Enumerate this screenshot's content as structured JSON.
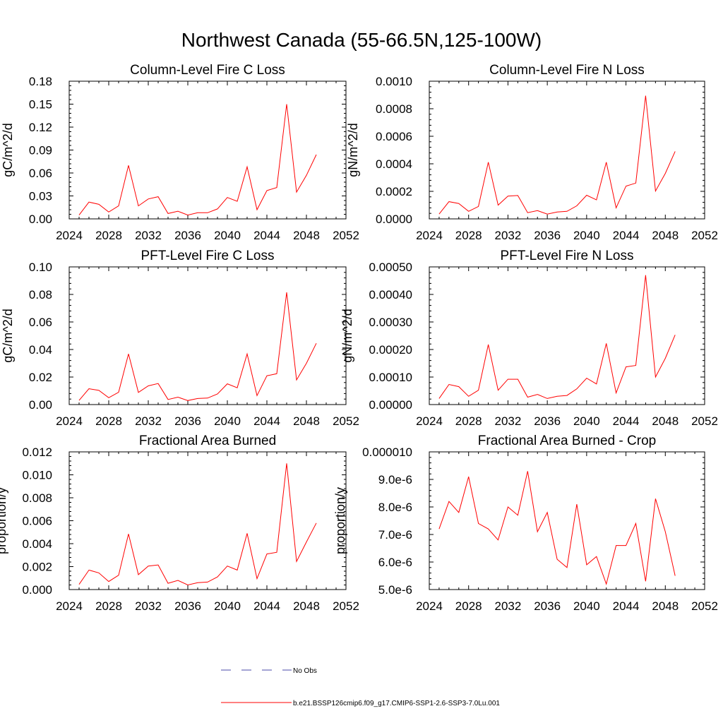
{
  "title": "Northwest Canada (55-66.5N,125-100W)",
  "legend": {
    "no_obs": "No Obs",
    "model": "b.e21.BSSP126cmip6.f09_g17.CMIP6-SSP1-2.6-SSP3-7.0Lu.001"
  },
  "colors": {
    "series": "#ff0000",
    "no_obs": "#4a4aa8",
    "axis": "#000000"
  },
  "chart_data": [
    {
      "type": "line",
      "title": "Column-Level Fire C Loss",
      "ylabel": "gC/m^2/d",
      "xlabel": "",
      "xlim": [
        2024,
        2052
      ],
      "ylim": [
        0,
        0.18
      ],
      "x_ticks": [
        "2024",
        "2028",
        "2032",
        "2036",
        "2040",
        "2044",
        "2048",
        "2052"
      ],
      "y_ticks": [
        "0.00",
        "0.03",
        "0.06",
        "0.09",
        "0.12",
        "0.15",
        "0.18"
      ],
      "x": [
        2025,
        2026,
        2027,
        2028,
        2029,
        2030,
        2031,
        2032,
        2033,
        2034,
        2035,
        2036,
        2037,
        2038,
        2039,
        2040,
        2041,
        2042,
        2043,
        2044,
        2045,
        2046,
        2047,
        2048,
        2049
      ],
      "series": [
        {
          "values": [
            0.005,
            0.022,
            0.019,
            0.009,
            0.017,
            0.07,
            0.017,
            0.026,
            0.029,
            0.007,
            0.01,
            0.005,
            0.008,
            0.008,
            0.013,
            0.028,
            0.023,
            0.068,
            0.012,
            0.037,
            0.041,
            0.15,
            0.035,
            0.057,
            0.084
          ]
        }
      ]
    },
    {
      "type": "line",
      "title": "Column-Level Fire N Loss",
      "ylabel": "gN/m^2/d",
      "xlabel": "",
      "xlim": [
        2024,
        2052
      ],
      "ylim": [
        0,
        0.001
      ],
      "x_ticks": [
        "2024",
        "2028",
        "2032",
        "2036",
        "2040",
        "2044",
        "2048",
        "2052"
      ],
      "y_ticks": [
        "0.0000",
        "0.0002",
        "0.0004",
        "0.0006",
        "0.0008",
        "0.0010"
      ],
      "x": [
        2025,
        2026,
        2027,
        2028,
        2029,
        2030,
        2031,
        2032,
        2033,
        2034,
        2035,
        2036,
        2037,
        2038,
        2039,
        2040,
        2041,
        2042,
        2043,
        2044,
        2045,
        2046,
        2047,
        2048,
        2049
      ],
      "series": [
        {
          "values": [
            3.5e-05,
            0.000125,
            0.000112,
            5.5e-05,
            9e-05,
            0.000412,
            0.0001,
            0.000165,
            0.00017,
            4.5e-05,
            6e-05,
            3.5e-05,
            5e-05,
            5.5e-05,
            9.5e-05,
            0.000172,
            0.000138,
            0.000412,
            8e-05,
            0.000238,
            0.00026,
            0.000895,
            0.000202,
            0.00033,
            0.00049
          ]
        }
      ]
    },
    {
      "type": "line",
      "title": "PFT-Level Fire C Loss",
      "ylabel": "gC/m^2/d",
      "xlabel": "",
      "xlim": [
        2024,
        2052
      ],
      "ylim": [
        0,
        0.1
      ],
      "x_ticks": [
        "2024",
        "2028",
        "2032",
        "2036",
        "2040",
        "2044",
        "2048",
        "2052"
      ],
      "y_ticks": [
        "0.00",
        "0.02",
        "0.04",
        "0.06",
        "0.08",
        "0.10"
      ],
      "x": [
        2025,
        2026,
        2027,
        2028,
        2029,
        2030,
        2031,
        2032,
        2033,
        2034,
        2035,
        2036,
        2037,
        2038,
        2039,
        2040,
        2041,
        2042,
        2043,
        2044,
        2045,
        2046,
        2047,
        2048,
        2049
      ],
      "series": [
        {
          "values": [
            0.003,
            0.0115,
            0.0103,
            0.005,
            0.009,
            0.0368,
            0.0088,
            0.0136,
            0.0153,
            0.0037,
            0.0054,
            0.0029,
            0.0044,
            0.0047,
            0.0077,
            0.0151,
            0.0122,
            0.0368,
            0.0065,
            0.0209,
            0.0224,
            0.0815,
            0.0179,
            0.03,
            0.0445
          ]
        }
      ]
    },
    {
      "type": "line",
      "title": "PFT-Level Fire N Loss",
      "ylabel": "gN/m^2/d",
      "xlabel": "",
      "xlim": [
        2024,
        2052
      ],
      "ylim": [
        0,
        0.0005
      ],
      "x_ticks": [
        "2024",
        "2028",
        "2032",
        "2036",
        "2040",
        "2044",
        "2048",
        "2052"
      ],
      "y_ticks": [
        "0.00000",
        "0.00010",
        "0.00020",
        "0.00030",
        "0.00040",
        "0.00050"
      ],
      "x": [
        2025,
        2026,
        2027,
        2028,
        2029,
        2030,
        2031,
        2032,
        2033,
        2034,
        2035,
        2036,
        2037,
        2038,
        2039,
        2040,
        2041,
        2042,
        2043,
        2044,
        2045,
        2046,
        2047,
        2048,
        2049
      ],
      "series": [
        {
          "values": [
            2.2e-05,
            7.3e-05,
            6.5e-05,
            3e-05,
            5.2e-05,
            0.000218,
            5.2e-05,
            9.2e-05,
            9.2e-05,
            2.7e-05,
            3.7e-05,
            2.2e-05,
            3e-05,
            3.3e-05,
            5.7e-05,
            9.6e-05,
            7.5e-05,
            0.000222,
            4.2e-05,
            0.000137,
            0.000142,
            0.00047,
            0.0001,
            0.000168,
            0.000253
          ]
        }
      ]
    },
    {
      "type": "line",
      "title": "Fractional Area Burned",
      "ylabel": "proportion/y",
      "xlabel": "",
      "xlim": [
        2024,
        2052
      ],
      "ylim": [
        0,
        0.012
      ],
      "x_ticks": [
        "2024",
        "2028",
        "2032",
        "2036",
        "2040",
        "2044",
        "2048",
        "2052"
      ],
      "y_ticks": [
        "0.000",
        "0.002",
        "0.004",
        "0.006",
        "0.008",
        "0.010",
        "0.012"
      ],
      "x": [
        2025,
        2026,
        2027,
        2028,
        2029,
        2030,
        2031,
        2032,
        2033,
        2034,
        2035,
        2036,
        2037,
        2038,
        2039,
        2040,
        2041,
        2042,
        2043,
        2044,
        2045,
        2046,
        2047,
        2048,
        2049
      ],
      "series": [
        {
          "values": [
            0.00045,
            0.0017,
            0.00145,
            0.0007,
            0.00125,
            0.00485,
            0.0013,
            0.00205,
            0.00215,
            0.00055,
            0.0008,
            0.0004,
            0.0006,
            0.00065,
            0.0011,
            0.00205,
            0.0017,
            0.0049,
            0.00095,
            0.0031,
            0.00325,
            0.011,
            0.00245,
            0.00415,
            0.0058
          ]
        }
      ]
    },
    {
      "type": "line",
      "title": "Fractional Area Burned - Crop",
      "ylabel": "proportion/y",
      "xlabel": "",
      "xlim": [
        2024,
        2052
      ],
      "ylim": [
        5e-06,
        1e-05
      ],
      "x_ticks": [
        "2024",
        "2028",
        "2032",
        "2036",
        "2040",
        "2044",
        "2048",
        "2052"
      ],
      "y_ticks": [
        "5.0e-6",
        "6.0e-6",
        "7.0e-6",
        "8.0e-6",
        "9.0e-6",
        "0.000010"
      ],
      "x": [
        2025,
        2026,
        2027,
        2028,
        2029,
        2030,
        2031,
        2032,
        2033,
        2034,
        2035,
        2036,
        2037,
        2038,
        2039,
        2040,
        2041,
        2042,
        2043,
        2044,
        2045,
        2046,
        2047,
        2048,
        2049
      ],
      "series": [
        {
          "values": [
            7.2e-06,
            8.2e-06,
            7.8e-06,
            9.1e-06,
            7.4e-06,
            7.2e-06,
            6.8e-06,
            8e-06,
            7.7e-06,
            9.3e-06,
            7.1e-06,
            7.8e-06,
            6.1e-06,
            5.8e-06,
            8.1e-06,
            5.9e-06,
            6.2e-06,
            5.2e-06,
            6.6e-06,
            6.6e-06,
            7.4e-06,
            5.3e-06,
            8.3e-06,
            7.1e-06,
            5.5e-06
          ]
        }
      ]
    }
  ]
}
